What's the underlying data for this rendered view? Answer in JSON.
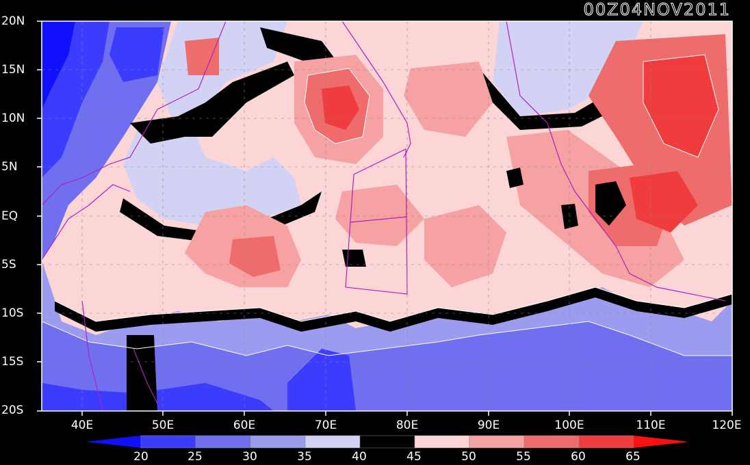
{
  "title": "00Z04NOV2011",
  "lat_labels": [
    "20N",
    "15N",
    "10N",
    "5N",
    "EQ",
    "5S",
    "10S",
    "15S",
    "20S"
  ],
  "lon_labels": [
    "40E",
    "50E",
    "60E",
    "70E",
    "80E",
    "90E",
    "100E",
    "110E",
    "120E"
  ],
  "colorbar": {
    "ticks": [
      "20",
      "25",
      "30",
      "35",
      "40",
      "45",
      "50",
      "55",
      "60",
      "65"
    ],
    "colors": [
      "#1010ff",
      "#3c3cff",
      "#6f6fef",
      "#9b9bef",
      "#d2d2f5",
      "#000000",
      "#fcd6d6",
      "#f6a2a2",
      "#ee6c6c",
      "#f03c3c",
      "#ff0f0f"
    ]
  },
  "colors": {
    "coast": "#b020c0",
    "contour": "#ffffff",
    "background": "#000000"
  }
}
